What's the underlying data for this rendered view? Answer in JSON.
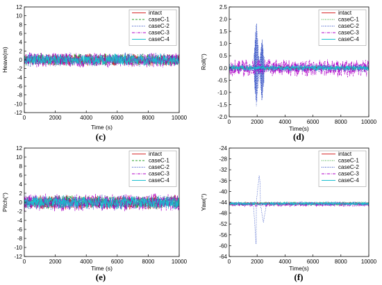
{
  "chart_data": [
    {
      "type": "line",
      "panel_label": "(c)",
      "xlabel": "Time (s)",
      "ylabel": "Heave(m)",
      "xlim": [
        0,
        10000
      ],
      "ylim": [
        -12,
        12
      ],
      "xticks": [
        0,
        2000,
        4000,
        6000,
        8000,
        10000
      ],
      "yticks": [
        -12,
        -10,
        -8,
        -6,
        -4,
        -2,
        0,
        2,
        4,
        6,
        8,
        10,
        12
      ],
      "grid": false,
      "legend_position": "top-right",
      "series": [
        {
          "name": "intact",
          "color": "#d62728",
          "dash": "solid",
          "amplitude": 1.2,
          "offset": 0
        },
        {
          "name": "caseC-1",
          "color": "#2ca02c",
          "dash": "dashed",
          "amplitude": 1.2,
          "offset": 0
        },
        {
          "name": "caseC-2",
          "color": "#1f3fbf",
          "dash": "dotted",
          "amplitude": 1.3,
          "offset": 0
        },
        {
          "name": "caseC-3",
          "color": "#b000c8",
          "dash": "dashdot",
          "amplitude": 1.4,
          "offset": 0
        },
        {
          "name": "caseC-4",
          "color": "#17becf",
          "dash": "solid",
          "amplitude": 1.1,
          "offset": 0
        }
      ]
    },
    {
      "type": "line",
      "panel_label": "(d)",
      "xlabel": "Time(s)",
      "ylabel": "Roll(°)",
      "xlim": [
        0,
        10000
      ],
      "ylim": [
        -2.0,
        2.5
      ],
      "xticks": [
        0,
        2000,
        4000,
        6000,
        8000,
        10000
      ],
      "yticks": [
        -2.0,
        -1.5,
        -1.0,
        -0.5,
        0.0,
        0.5,
        1.0,
        1.5,
        2.0,
        2.5
      ],
      "grid": false,
      "legend_position": "top-right",
      "series": [
        {
          "name": "intact",
          "color": "#d62728",
          "dash": "solid",
          "amplitude": 0.06,
          "offset": 0
        },
        {
          "name": "caseC-1",
          "color": "#2ca02c",
          "dash": "dotted",
          "amplitude": 0.08,
          "offset": 0
        },
        {
          "name": "caseC-2",
          "color": "#1f3fbf",
          "dash": "dotted",
          "amplitude": 0.15,
          "offset": 0,
          "peaks": [
            [
              1950,
              1.95,
              -1.6
            ],
            [
              2350,
              1.2,
              -1.4
            ]
          ]
        },
        {
          "name": "caseC-3",
          "color": "#b000c8",
          "dash": "dashdot",
          "amplitude": 0.3,
          "offset": 0
        },
        {
          "name": "caseC-4",
          "color": "#17becf",
          "dash": "solid",
          "amplitude": 0.1,
          "offset": 0
        }
      ]
    },
    {
      "type": "line",
      "panel_label": "(e)",
      "xlabel": "Time (s)",
      "ylabel": "Pitch(°)",
      "xlim": [
        0,
        10000
      ],
      "ylim": [
        -12,
        12
      ],
      "xticks": [
        0,
        2000,
        4000,
        6000,
        8000,
        10000
      ],
      "yticks": [
        -12,
        -10,
        -8,
        -6,
        -4,
        -2,
        0,
        2,
        4,
        6,
        8,
        10,
        12
      ],
      "grid": false,
      "legend_position": "top-right",
      "series": [
        {
          "name": "intact",
          "color": "#d62728",
          "dash": "solid",
          "amplitude": 1.3,
          "offset": 0
        },
        {
          "name": "caseC-1",
          "color": "#2ca02c",
          "dash": "dashed",
          "amplitude": 1.3,
          "offset": 0
        },
        {
          "name": "caseC-2",
          "color": "#1f3fbf",
          "dash": "dotted",
          "amplitude": 1.4,
          "offset": 0
        },
        {
          "name": "caseC-3",
          "color": "#b000c8",
          "dash": "dashdot",
          "amplitude": 1.6,
          "offset": 0
        },
        {
          "name": "caseC-4",
          "color": "#17becf",
          "dash": "solid",
          "amplitude": 1.2,
          "offset": 0
        }
      ]
    },
    {
      "type": "line",
      "panel_label": "(f)",
      "xlabel": "Time(s)",
      "ylabel": "Yaw(°)",
      "xlim": [
        0,
        10000
      ],
      "ylim": [
        -64,
        -24
      ],
      "xticks": [
        0,
        2000,
        4000,
        6000,
        8000,
        10000
      ],
      "yticks": [
        -64,
        -60,
        -56,
        -52,
        -48,
        -44,
        -40,
        -36,
        -32,
        -28,
        -24
      ],
      "grid": false,
      "legend_position": "top-right",
      "series": [
        {
          "name": "intact",
          "color": "#d62728",
          "dash": "solid",
          "amplitude": 0.4,
          "offset": -44.5
        },
        {
          "name": "caseC-1",
          "color": "#2ca02c",
          "dash": "dotted",
          "amplitude": 0.6,
          "offset": -44.5
        },
        {
          "name": "caseC-2",
          "color": "#1f3fbf",
          "dash": "dotted",
          "amplitude": 0.6,
          "offset": -44.5,
          "peaks": [
            [
              1950,
              -61.0,
              -61.0
            ],
            [
              2150,
              -34.0,
              -34.0
            ],
            [
              2450,
              -51.5,
              -51.5
            ]
          ]
        },
        {
          "name": "caseC-3",
          "color": "#b000c8",
          "dash": "dashdot",
          "amplitude": 0.7,
          "offset": -44.8
        },
        {
          "name": "caseC-4",
          "color": "#17becf",
          "dash": "solid",
          "amplitude": 0.5,
          "offset": -44.5
        }
      ]
    }
  ]
}
